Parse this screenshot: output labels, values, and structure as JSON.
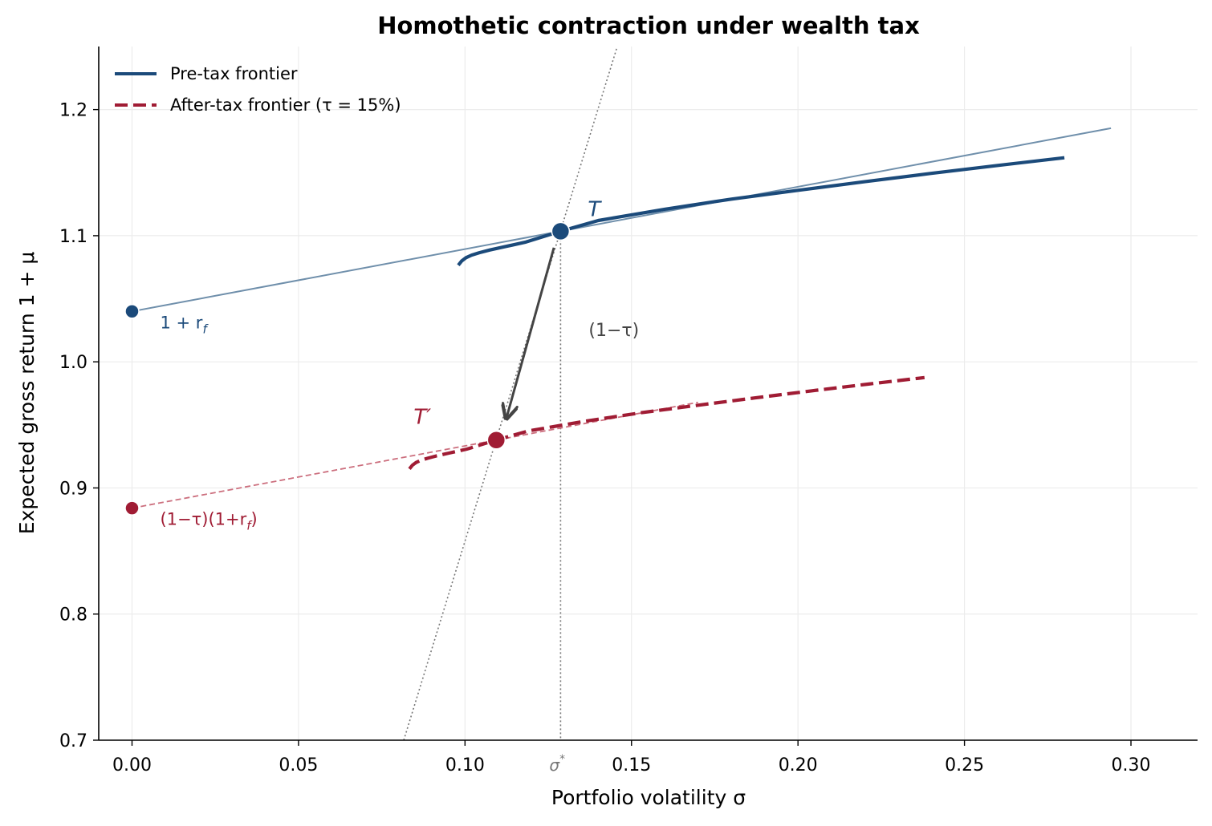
{
  "chart_data": {
    "type": "line",
    "title": "Homothetic contraction under wealth tax",
    "xlabel": "Portfolio volatility σ",
    "ylabel": "Expected gross return 1 + μ",
    "xlim": [
      -0.01,
      0.32
    ],
    "ylim": [
      0.7,
      1.25
    ],
    "xticks": [
      0.0,
      0.05,
      0.1,
      0.15,
      0.2,
      0.25,
      0.3
    ],
    "xtick_labels": [
      "0.00",
      "0.05",
      "0.10",
      "0.15",
      "0.20",
      "0.25",
      "0.30"
    ],
    "yticks": [
      0.7,
      0.8,
      0.9,
      1.0,
      1.1,
      1.2
    ],
    "ytick_labels": [
      "0.7",
      "0.8",
      "0.9",
      "1.0",
      "1.1",
      "1.2"
    ],
    "grid": true,
    "legend_position": "top-left",
    "tau": 0.15,
    "risk_free_gross": 1.04,
    "sigma_star": 0.1287,
    "series": [
      {
        "name": "Pre-tax frontier",
        "style": "solid",
        "color": "#1b4a7a",
        "x": [
          0.098,
          0.099,
          0.1003,
          0.102,
          0.1043,
          0.1075,
          0.112,
          0.1183,
          0.1287,
          0.14,
          0.16,
          0.18,
          0.2,
          0.22,
          0.24,
          0.26,
          0.28
        ],
        "y": [
          1.0766,
          1.08,
          1.0826,
          1.0846,
          1.0865,
          1.0887,
          1.0913,
          1.095,
          1.1035,
          1.112,
          1.121,
          1.129,
          1.136,
          1.1428,
          1.1494,
          1.1557,
          1.1618
        ]
      },
      {
        "name": "After-tax frontier (τ = 15%)",
        "style": "dashed",
        "color": "#a01c34",
        "x": [
          0.0833,
          0.0842,
          0.0853,
          0.0867,
          0.0887,
          0.0914,
          0.0952,
          0.1006,
          0.1094,
          0.119,
          0.136,
          0.153,
          0.17,
          0.187,
          0.204,
          0.221,
          0.238
        ],
        "y": [
          0.9151,
          0.918,
          0.9202,
          0.9219,
          0.9235,
          0.9254,
          0.9276,
          0.9308,
          0.938,
          0.9452,
          0.9529,
          0.9597,
          0.9656,
          0.9714,
          0.977,
          0.9823,
          0.9875
        ]
      }
    ],
    "capital_market_lines": [
      {
        "name": "pre-tax CML",
        "x": [
          0.0,
          0.294
        ],
        "y": [
          1.04,
          1.1852
        ],
        "color": "#6f8fab"
      },
      {
        "name": "after-tax CML",
        "x": [
          0.0,
          0.17
        ],
        "y": [
          0.884,
          0.9679
        ],
        "color": "#cc6f7e"
      }
    ],
    "ray_from_origin": {
      "slope": 8.578,
      "x": [
        0.0816,
        0.1457
      ]
    },
    "sigma_star_line": {
      "x": 0.1287
    },
    "points": [
      {
        "label": "T",
        "x": 0.1287,
        "y": 1.1035,
        "color": "#1b4a7a"
      },
      {
        "label": "T′",
        "x": 0.1094,
        "y": 0.938,
        "color": "#a01c34"
      },
      {
        "label": "1+r_f",
        "x": 0.0,
        "y": 1.04,
        "color": "#1b4a7a"
      },
      {
        "label": "(1−τ)(1+r_f)",
        "x": 0.0,
        "y": 0.884,
        "color": "#a01c34"
      }
    ],
    "arrow": {
      "from": [
        0.1267,
        1.0905
      ],
      "to": [
        0.1124,
        0.955
      ]
    },
    "annotations": {
      "T": "T",
      "T_prime": "T′",
      "rf_label_main": "1 + r",
      "rf_label_sub": "f",
      "tau_factor": "(1−τ)",
      "after_rf_main": "(1−τ)(1+r",
      "after_rf_sub": "f",
      "after_rf_close": ")",
      "sigma_star_main": "σ",
      "sigma_star_sup": "*"
    }
  },
  "colors": {
    "pre": "#1b4a7a",
    "after": "#a01c34",
    "arrow": "#444444",
    "guide": "#777777"
  }
}
